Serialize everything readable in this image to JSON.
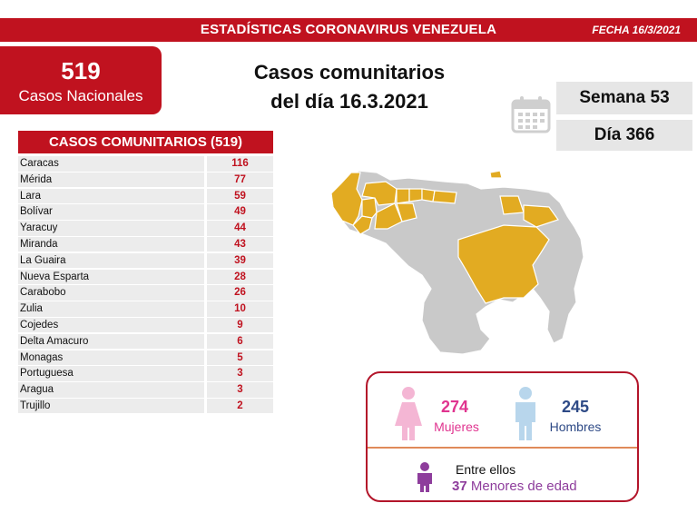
{
  "header": {
    "title": "ESTADÍSTICAS CORONAVIRUS VENEZUELA",
    "date": "FECHA 16/3/2021",
    "color": "#c0121f"
  },
  "national": {
    "count": "519",
    "label": "Casos Nacionales"
  },
  "headline": {
    "line1": "Casos comunitarios",
    "line2": "del día 16.3.2021"
  },
  "calendar": {
    "icon": "calendar-icon",
    "week": "Semana 53",
    "day": "Día 366"
  },
  "table": {
    "title": "CASOS COMUNITARIOS (519)",
    "rows": [
      {
        "state": "Caracas",
        "count": "116"
      },
      {
        "state": "Mérida",
        "count": "77"
      },
      {
        "state": "Lara",
        "count": "59"
      },
      {
        "state": "Bolívar",
        "count": "49"
      },
      {
        "state": "Yaracuy",
        "count": "44"
      },
      {
        "state": "Miranda",
        "count": "43"
      },
      {
        "state": "La Guaira",
        "count": "39"
      },
      {
        "state": "Nueva Esparta",
        "count": "28"
      },
      {
        "state": "Carabobo",
        "count": "26"
      },
      {
        "state": "Zulia",
        "count": "10"
      },
      {
        "state": "Cojedes",
        "count": "9"
      },
      {
        "state": "Delta Amacuro",
        "count": "6"
      },
      {
        "state": "Monagas",
        "count": "5"
      },
      {
        "state": "Portuguesa",
        "count": "3"
      },
      {
        "state": "Aragua",
        "count": "3"
      },
      {
        "state": "Trujillo",
        "count": "2"
      }
    ]
  },
  "map": {
    "highlight_color": "#e2ab22",
    "base_color": "#c9c9c9"
  },
  "gender": {
    "female_count": "274",
    "female_label": "Mujeres",
    "female_color": "#e0348f",
    "male_count": "245",
    "male_label": "Hombres",
    "male_color": "#2e4a86",
    "minors_intro": "Entre ellos",
    "minors_count": "37",
    "minors_label": "Menores de edad",
    "minors_color": "#8e3d9c"
  }
}
